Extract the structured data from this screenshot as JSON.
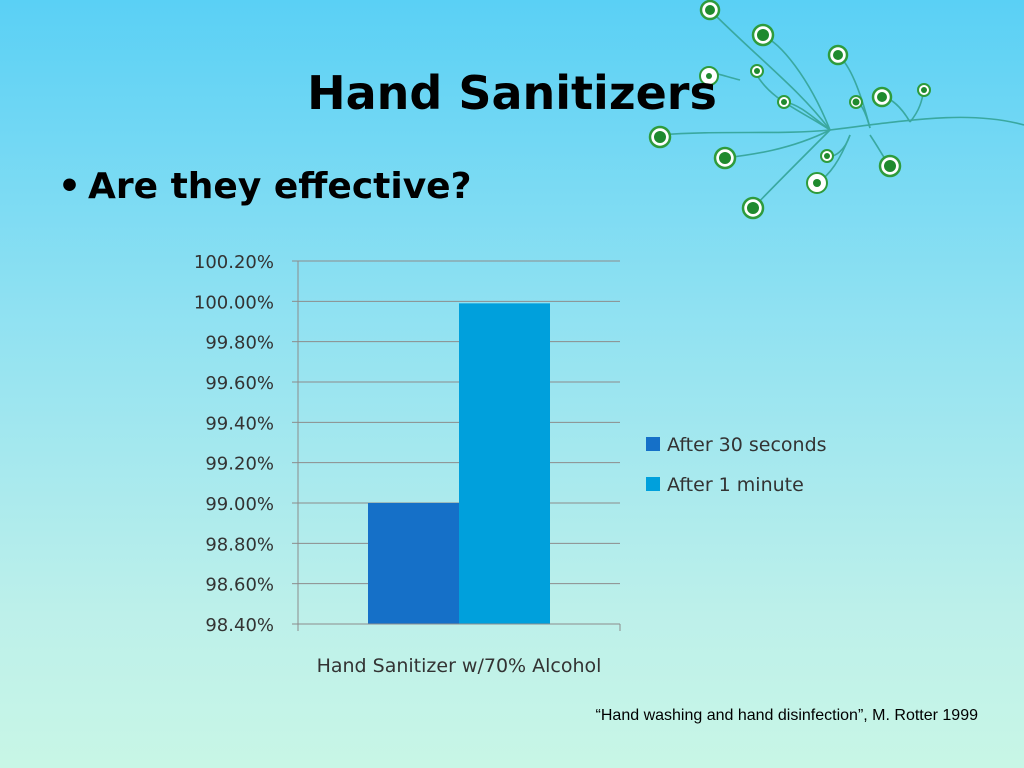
{
  "slide": {
    "title": "Hand Sanitizers",
    "bullet_symbol": "•",
    "bullet_text": "Are they effective?",
    "citation": "“Hand washing and hand disinfection”, M. Rotter 1999"
  },
  "chart_data": {
    "type": "bar",
    "categories": [
      "Hand Sanitizer w/70% Alcohol"
    ],
    "series": [
      {
        "name": "After 30 seconds",
        "values": [
          99.0
        ],
        "color": "#1570c8"
      },
      {
        "name": "After 1 minute",
        "values": [
          99.99
        ],
        "color": "#00a0dc"
      }
    ],
    "ylim": [
      98.4,
      100.2
    ],
    "y_ticks": [
      "98.40%",
      "98.60%",
      "98.80%",
      "99.00%",
      "99.20%",
      "99.40%",
      "99.60%",
      "99.80%",
      "100.00%",
      "100.20%"
    ],
    "grid": true,
    "legend_position": "right"
  }
}
